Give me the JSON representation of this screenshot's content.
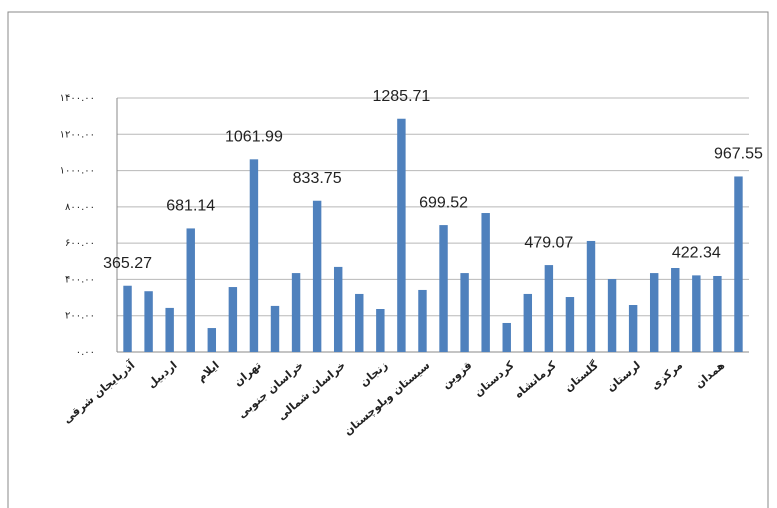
{
  "chart_data": {
    "type": "bar",
    "categories": [
      "آذربایجان شرقی",
      null,
      "اردبیل",
      null,
      "ایلام",
      null,
      "تهران",
      null,
      "خراسان جنوبی",
      null,
      "خراسان شمالی",
      null,
      "زنجان",
      null,
      "سیستان وبلوچستان",
      null,
      "قزوین",
      null,
      "کردستان",
      null,
      "کرمانشاه",
      null,
      "گلستان",
      null,
      "لرستان",
      null,
      "مرکزی",
      null,
      "همدان",
      null
    ],
    "values": [
      365.27,
      335,
      243,
      681.14,
      132,
      358,
      1061.99,
      254,
      435,
      833.75,
      469,
      320,
      237,
      1285.71,
      342,
      699.52,
      435,
      766,
      160,
      320,
      479.07,
      303,
      612,
      402,
      259,
      435,
      463,
      422.34,
      419,
      967.55
    ],
    "value_labels": [
      "365.27",
      null,
      null,
      "681.14",
      null,
      null,
      "1061.99",
      null,
      null,
      "833.75",
      null,
      null,
      null,
      "1285.71",
      null,
      "699.52",
      null,
      null,
      null,
      null,
      "479.07",
      null,
      null,
      null,
      null,
      null,
      null,
      "422.34",
      null,
      "967.55"
    ],
    "color": "#4f81bd",
    "ylim": [
      0,
      1400
    ],
    "yticks": [
      {
        "value": 0,
        "label": "۰.۰۰"
      },
      {
        "value": 200,
        "label": "۲۰۰.۰۰"
      },
      {
        "value": 400,
        "label": "۴۰۰.۰۰"
      },
      {
        "value": 600,
        "label": "۶۰۰.۰۰"
      },
      {
        "value": 800,
        "label": "۸۰۰.۰۰"
      },
      {
        "value": 1000,
        "label": "۱۰۰۰.۰۰"
      },
      {
        "value": 1200,
        "label": "۱۲۰۰.۰۰"
      },
      {
        "value": 1400,
        "label": "۱۴۰۰.۰۰"
      }
    ],
    "grid": true
  }
}
